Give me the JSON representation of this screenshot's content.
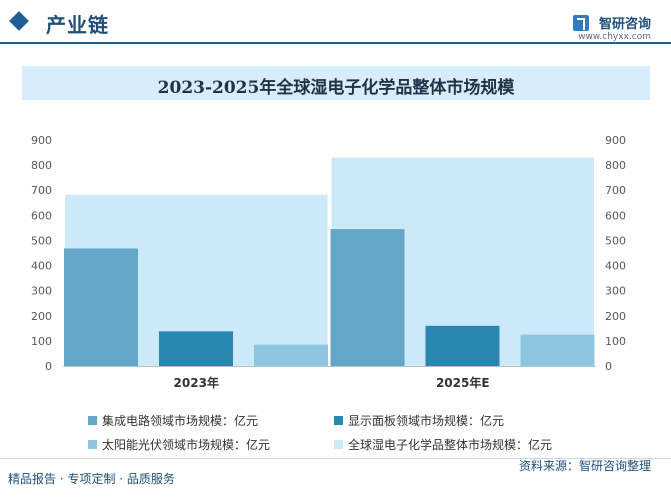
{
  "header": {
    "title": "产业链",
    "brand_name": "智研咨询",
    "brand_url": "www.chyxx.com"
  },
  "chart_data": {
    "type": "bar",
    "title": "2023-2025年全球湿电子化学品整体市场规模",
    "categories": [
      "2023年",
      "2025年E"
    ],
    "series": [
      {
        "name": "集成电路领域市场规模：亿元",
        "values": [
          468,
          545
        ],
        "color": "#64a6c8",
        "axis": "left"
      },
      {
        "name": "显示面板领域市场规模：亿元",
        "values": [
          138,
          160
        ],
        "color": "#2886b1",
        "axis": "left"
      },
      {
        "name": "太阳能光伏领域市场规模：亿元",
        "values": [
          85,
          125
        ],
        "color": "#8ec5df",
        "axis": "left"
      },
      {
        "name": "全球湿电子化学品整体市场规模：亿元",
        "values": [
          682,
          830
        ],
        "color": "#cbe9f8",
        "axis": "right"
      }
    ],
    "y_left": {
      "min": 0,
      "max": 900,
      "ticks": [
        0,
        100,
        200,
        300,
        400,
        500,
        600,
        700,
        800,
        900
      ]
    },
    "y_right": {
      "min": 0,
      "max": 900,
      "ticks": [
        0,
        100,
        200,
        300,
        400,
        500,
        600,
        700,
        800,
        900
      ]
    },
    "grid": false,
    "legend_position": "bottom"
  },
  "footer": {
    "left": "精品报告 · 专项定制 · 品质服务",
    "right": "资料来源：智研咨询整理"
  }
}
